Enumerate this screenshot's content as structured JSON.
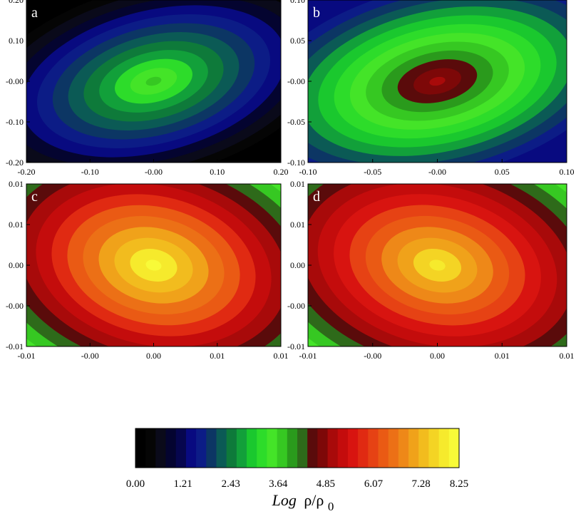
{
  "chart_data": [
    {
      "type": "heatmap",
      "panel_label": "a",
      "x_ticks": [
        "-0.20",
        "-0.10",
        "-0.00",
        "0.10",
        "0.20"
      ],
      "y_ticks": [
        "0.20",
        "0.10",
        "-0.00",
        "-0.10",
        "-0.20"
      ],
      "xlim": [
        -0.2,
        0.2
      ],
      "ylim": [
        -0.2,
        0.2
      ],
      "center": [
        0.0,
        0.0
      ],
      "peak_log_density": 3.7,
      "background_log_density": 0.1,
      "tilt_deg": -14
    },
    {
      "type": "heatmap",
      "panel_label": "b",
      "x_ticks": [
        "-0.10",
        "-0.05",
        "-0.00",
        "0.05",
        "0.10"
      ],
      "y_ticks": [
        "0.10",
        "0.05",
        "-0.00",
        "-0.05",
        "-0.10"
      ],
      "xlim": [
        -0.1,
        0.1
      ],
      "ylim": [
        -0.1,
        0.1
      ],
      "center": [
        0.0,
        0.0
      ],
      "peak_log_density": 5.0,
      "background_log_density": 1.4,
      "tilt_deg": -12
    },
    {
      "type": "heatmap",
      "panel_label": "c",
      "x_ticks": [
        "-0.01",
        "-0.00",
        "0.00",
        "0.01",
        "0.01"
      ],
      "y_ticks": [
        "0.01",
        "0.01",
        "0.00",
        "-0.00",
        "-0.01"
      ],
      "xlim": [
        -0.014,
        0.014
      ],
      "ylim": [
        -0.014,
        0.014
      ],
      "center": [
        0.0,
        0.0
      ],
      "peak_log_density": 8.2,
      "background_log_density": 3.4,
      "tilt_deg": 12
    },
    {
      "type": "heatmap",
      "panel_label": "d",
      "x_ticks": [
        "-0.01",
        "-0.00",
        "0.00",
        "0.01",
        "0.01"
      ],
      "y_ticks": [
        "0.01",
        "0.01",
        "0.00",
        "-0.00",
        "-0.01"
      ],
      "xlim": [
        -0.014,
        0.014
      ],
      "ylim": [
        -0.014,
        0.014
      ],
      "center": [
        0.0,
        0.0
      ],
      "peak_log_density": 7.9,
      "background_log_density": 3.4,
      "tilt_deg": 12
    }
  ],
  "colorbar": {
    "min": 0.0,
    "max": 8.25,
    "tick_labels": [
      "0.00",
      "1.21",
      "2.43",
      "3.64",
      "4.85",
      "6.07",
      "7.28",
      "8.25"
    ],
    "label_italic": "Log",
    "label_main": "ρ/ρ",
    "label_sub": "0",
    "colors": [
      "#000000",
      "#050505",
      "#0a0a1a",
      "#040430",
      "#06064e",
      "#080a80",
      "#0c1c86",
      "#0c3664",
      "#0b5a55",
      "#0e7a3a",
      "#12a03a",
      "#1ac82e",
      "#2ddc2a",
      "#44e428",
      "#36c822",
      "#2a9a1c",
      "#2e6a1a",
      "#5a0b0b",
      "#7d0808",
      "#a80a0a",
      "#c40c0c",
      "#d81410",
      "#e02a12",
      "#e64214",
      "#ea5a14",
      "#ec7016",
      "#ee8818",
      "#f0a21a",
      "#f2bc1e",
      "#f4d424",
      "#f6ea2c",
      "#f8fa38"
    ]
  }
}
